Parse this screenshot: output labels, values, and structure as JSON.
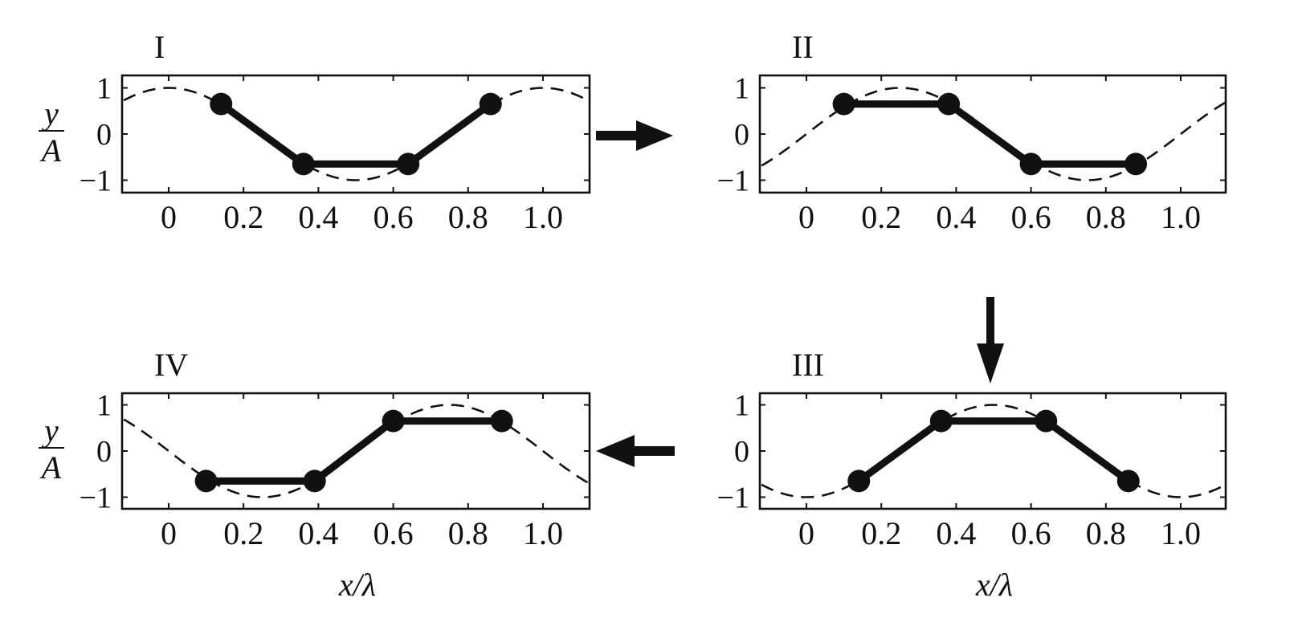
{
  "chart_data": [
    {
      "type": "line",
      "title": "I",
      "xlabel": "",
      "ylabel": {
        "numerator": "y",
        "denominator": "A"
      },
      "xlim": [
        -0.12,
        1.12
      ],
      "ylim": [
        -1.25,
        1.25
      ],
      "x_ticks": [
        0,
        0.2,
        0.4,
        0.6,
        0.8,
        1.0
      ],
      "x_tick_labels": [
        "0",
        "0.2",
        "0.4",
        "0.6",
        "0.8",
        "1.0"
      ],
      "y_ticks": [
        1,
        0,
        -1
      ],
      "y_tick_labels": [
        "1",
        "0",
        "−1"
      ],
      "wave_phase": 0.0,
      "series": [
        {
          "style": "dashed-wave"
        },
        {
          "style": "chain",
          "x": [
            0.14,
            0.36,
            0.64,
            0.86
          ],
          "y": [
            0.65,
            -0.65,
            -0.65,
            0.65
          ]
        }
      ]
    },
    {
      "type": "line",
      "title": "II",
      "xlabel": "",
      "xlim": [
        -0.12,
        1.12
      ],
      "ylim": [
        -1.25,
        1.25
      ],
      "x_ticks": [
        0,
        0.2,
        0.4,
        0.6,
        0.8,
        1.0
      ],
      "x_tick_labels": [
        "0",
        "0.2",
        "0.4",
        "0.6",
        "0.8",
        "1.0"
      ],
      "y_ticks": [
        1,
        0,
        -1
      ],
      "y_tick_labels": [
        "1",
        "0",
        "−1"
      ],
      "wave_phase": 0.25,
      "series": [
        {
          "style": "dashed-wave"
        },
        {
          "style": "chain",
          "x": [
            0.1,
            0.38,
            0.6,
            0.88
          ],
          "y": [
            0.65,
            0.65,
            -0.65,
            -0.65
          ]
        }
      ]
    },
    {
      "type": "line",
      "title": "IV",
      "xlabel": "x/λ",
      "ylabel": {
        "numerator": "y",
        "denominator": "A"
      },
      "xlim": [
        -0.12,
        1.12
      ],
      "ylim": [
        -1.25,
        1.25
      ],
      "x_ticks": [
        0,
        0.2,
        0.4,
        0.6,
        0.8,
        1.0
      ],
      "x_tick_labels": [
        "0",
        "0.2",
        "0.4",
        "0.6",
        "0.8",
        "1.0"
      ],
      "y_ticks": [
        1,
        0,
        -1
      ],
      "y_tick_labels": [
        "1",
        "0",
        "−1"
      ],
      "wave_phase": 0.75,
      "series": [
        {
          "style": "dashed-wave"
        },
        {
          "style": "chain",
          "x": [
            0.1,
            0.39,
            0.6,
            0.89
          ],
          "y": [
            -0.65,
            -0.65,
            0.65,
            0.65
          ]
        }
      ]
    },
    {
      "type": "line",
      "title": "III",
      "xlabel": "x/λ",
      "xlim": [
        -0.12,
        1.12
      ],
      "ylim": [
        -1.25,
        1.25
      ],
      "x_ticks": [
        0,
        0.2,
        0.4,
        0.6,
        0.8,
        1.0
      ],
      "x_tick_labels": [
        "0",
        "0.2",
        "0.4",
        "0.6",
        "0.8",
        "1.0"
      ],
      "y_ticks": [
        1,
        0,
        -1
      ],
      "y_tick_labels": [
        "1",
        "0",
        "−1"
      ],
      "wave_phase": 0.5,
      "series": [
        {
          "style": "dashed-wave"
        },
        {
          "style": "chain",
          "x": [
            0.14,
            0.36,
            0.64,
            0.86
          ],
          "y": [
            -0.65,
            0.65,
            0.65,
            -0.65
          ]
        }
      ]
    }
  ],
  "arrows": [
    {
      "from": "I",
      "to": "II",
      "direction": "right"
    },
    {
      "from": "II",
      "to": "III",
      "direction": "down"
    },
    {
      "from": "III",
      "to": "IV",
      "direction": "left"
    }
  ]
}
